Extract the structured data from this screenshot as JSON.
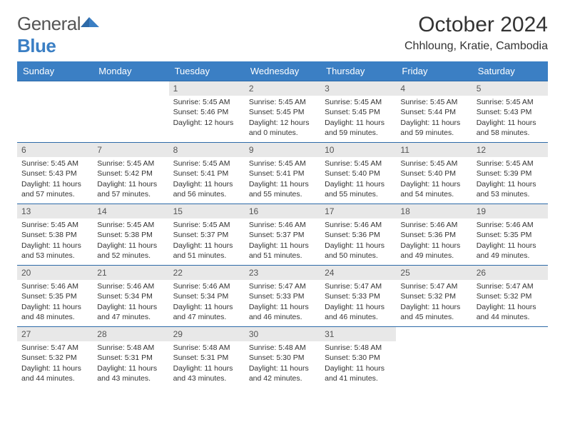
{
  "brand": {
    "name_a": "General",
    "name_b": "Blue"
  },
  "title": "October 2024",
  "location": "Chhloung, Kratie, Cambodia",
  "colors": {
    "header_bg": "#3b7fc4",
    "header_text": "#ffffff",
    "daynum_bg": "#e8e8e8",
    "row_border": "#2d6aa8",
    "text": "#333333",
    "background": "#ffffff"
  },
  "daysOfWeek": [
    "Sunday",
    "Monday",
    "Tuesday",
    "Wednesday",
    "Thursday",
    "Friday",
    "Saturday"
  ],
  "weeks": [
    [
      null,
      null,
      {
        "n": "1",
        "sunrise": "5:45 AM",
        "sunset": "5:46 PM",
        "daylight": "12 hours"
      },
      {
        "n": "2",
        "sunrise": "5:45 AM",
        "sunset": "5:45 PM",
        "daylight": "12 hours and 0 minutes."
      },
      {
        "n": "3",
        "sunrise": "5:45 AM",
        "sunset": "5:45 PM",
        "daylight": "11 hours and 59 minutes."
      },
      {
        "n": "4",
        "sunrise": "5:45 AM",
        "sunset": "5:44 PM",
        "daylight": "11 hours and 59 minutes."
      },
      {
        "n": "5",
        "sunrise": "5:45 AM",
        "sunset": "5:43 PM",
        "daylight": "11 hours and 58 minutes."
      }
    ],
    [
      {
        "n": "6",
        "sunrise": "5:45 AM",
        "sunset": "5:43 PM",
        "daylight": "11 hours and 57 minutes."
      },
      {
        "n": "7",
        "sunrise": "5:45 AM",
        "sunset": "5:42 PM",
        "daylight": "11 hours and 57 minutes."
      },
      {
        "n": "8",
        "sunrise": "5:45 AM",
        "sunset": "5:41 PM",
        "daylight": "11 hours and 56 minutes."
      },
      {
        "n": "9",
        "sunrise": "5:45 AM",
        "sunset": "5:41 PM",
        "daylight": "11 hours and 55 minutes."
      },
      {
        "n": "10",
        "sunrise": "5:45 AM",
        "sunset": "5:40 PM",
        "daylight": "11 hours and 55 minutes."
      },
      {
        "n": "11",
        "sunrise": "5:45 AM",
        "sunset": "5:40 PM",
        "daylight": "11 hours and 54 minutes."
      },
      {
        "n": "12",
        "sunrise": "5:45 AM",
        "sunset": "5:39 PM",
        "daylight": "11 hours and 53 minutes."
      }
    ],
    [
      {
        "n": "13",
        "sunrise": "5:45 AM",
        "sunset": "5:38 PM",
        "daylight": "11 hours and 53 minutes."
      },
      {
        "n": "14",
        "sunrise": "5:45 AM",
        "sunset": "5:38 PM",
        "daylight": "11 hours and 52 minutes."
      },
      {
        "n": "15",
        "sunrise": "5:45 AM",
        "sunset": "5:37 PM",
        "daylight": "11 hours and 51 minutes."
      },
      {
        "n": "16",
        "sunrise": "5:46 AM",
        "sunset": "5:37 PM",
        "daylight": "11 hours and 51 minutes."
      },
      {
        "n": "17",
        "sunrise": "5:46 AM",
        "sunset": "5:36 PM",
        "daylight": "11 hours and 50 minutes."
      },
      {
        "n": "18",
        "sunrise": "5:46 AM",
        "sunset": "5:36 PM",
        "daylight": "11 hours and 49 minutes."
      },
      {
        "n": "19",
        "sunrise": "5:46 AM",
        "sunset": "5:35 PM",
        "daylight": "11 hours and 49 minutes."
      }
    ],
    [
      {
        "n": "20",
        "sunrise": "5:46 AM",
        "sunset": "5:35 PM",
        "daylight": "11 hours and 48 minutes."
      },
      {
        "n": "21",
        "sunrise": "5:46 AM",
        "sunset": "5:34 PM",
        "daylight": "11 hours and 47 minutes."
      },
      {
        "n": "22",
        "sunrise": "5:46 AM",
        "sunset": "5:34 PM",
        "daylight": "11 hours and 47 minutes."
      },
      {
        "n": "23",
        "sunrise": "5:47 AM",
        "sunset": "5:33 PM",
        "daylight": "11 hours and 46 minutes."
      },
      {
        "n": "24",
        "sunrise": "5:47 AM",
        "sunset": "5:33 PM",
        "daylight": "11 hours and 46 minutes."
      },
      {
        "n": "25",
        "sunrise": "5:47 AM",
        "sunset": "5:32 PM",
        "daylight": "11 hours and 45 minutes."
      },
      {
        "n": "26",
        "sunrise": "5:47 AM",
        "sunset": "5:32 PM",
        "daylight": "11 hours and 44 minutes."
      }
    ],
    [
      {
        "n": "27",
        "sunrise": "5:47 AM",
        "sunset": "5:32 PM",
        "daylight": "11 hours and 44 minutes."
      },
      {
        "n": "28",
        "sunrise": "5:48 AM",
        "sunset": "5:31 PM",
        "daylight": "11 hours and 43 minutes."
      },
      {
        "n": "29",
        "sunrise": "5:48 AM",
        "sunset": "5:31 PM",
        "daylight": "11 hours and 43 minutes."
      },
      {
        "n": "30",
        "sunrise": "5:48 AM",
        "sunset": "5:30 PM",
        "daylight": "11 hours and 42 minutes."
      },
      {
        "n": "31",
        "sunrise": "5:48 AM",
        "sunset": "5:30 PM",
        "daylight": "11 hours and 41 minutes."
      },
      null,
      null
    ]
  ],
  "labels": {
    "sunrise": "Sunrise: ",
    "sunset": "Sunset: ",
    "daylight": "Daylight: "
  }
}
